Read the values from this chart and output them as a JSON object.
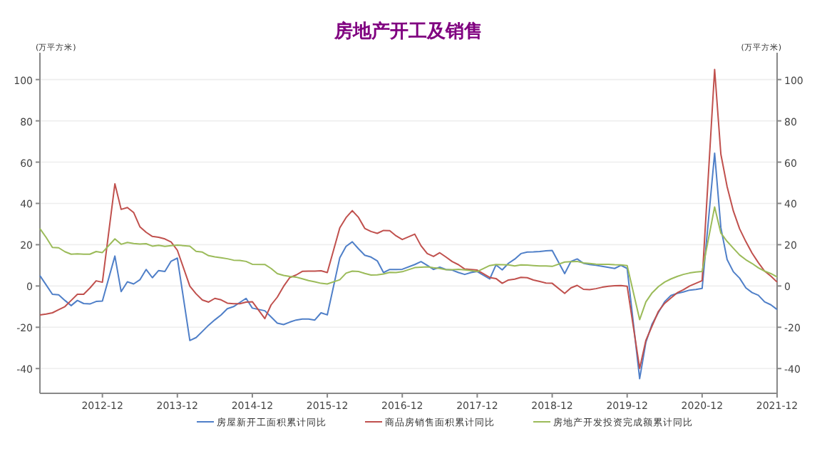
{
  "chart_data": {
    "type": "line",
    "title": "房地产开工及销售",
    "ylabel": "(万平方米)",
    "y2label": "(万平方米)",
    "x": [
      "2012-02",
      "2012-03",
      "2012-04",
      "2012-05",
      "2012-06",
      "2012-07",
      "2012-08",
      "2012-09",
      "2012-10",
      "2012-11",
      "2012-12",
      "2013-02",
      "2013-03",
      "2013-04",
      "2013-05",
      "2013-06",
      "2013-07",
      "2013-08",
      "2013-09",
      "2013-10",
      "2013-11",
      "2013-12",
      "2014-02",
      "2014-03",
      "2014-04",
      "2014-05",
      "2014-06",
      "2014-07",
      "2014-08",
      "2014-09",
      "2014-10",
      "2014-11",
      "2014-12",
      "2015-02",
      "2015-03",
      "2015-04",
      "2015-05",
      "2015-06",
      "2015-07",
      "2015-08",
      "2015-09",
      "2015-10",
      "2015-11",
      "2015-12",
      "2016-02",
      "2016-03",
      "2016-04",
      "2016-05",
      "2016-06",
      "2016-07",
      "2016-08",
      "2016-09",
      "2016-10",
      "2016-11",
      "2016-12",
      "2017-02",
      "2017-03",
      "2017-04",
      "2017-05",
      "2017-06",
      "2017-07",
      "2017-08",
      "2017-09",
      "2017-10",
      "2017-11",
      "2017-12",
      "2018-02",
      "2018-03",
      "2018-04",
      "2018-05",
      "2018-06",
      "2018-07",
      "2018-08",
      "2018-09",
      "2018-10",
      "2018-11",
      "2018-12",
      "2019-02",
      "2019-03",
      "2019-04",
      "2019-05",
      "2019-06",
      "2019-07",
      "2019-08",
      "2019-09",
      "2019-10",
      "2019-11",
      "2019-12",
      "2020-02",
      "2020-03",
      "2020-04",
      "2020-05",
      "2020-06",
      "2020-07",
      "2020-08",
      "2020-09",
      "2020-10",
      "2020-11",
      "2020-12",
      "2021-02",
      "2021-03",
      "2021-04",
      "2021-05",
      "2021-06",
      "2021-07",
      "2021-08",
      "2021-09",
      "2021-10",
      "2021-11",
      "2021-12"
    ],
    "series": [
      {
        "name": "房屋新开工面积累计同比",
        "color": "#4f7fc8",
        "values": [
          5,
          0.5,
          -4,
          -4.3,
          -7,
          -9.5,
          -7,
          -8.5,
          -8.7,
          -7.5,
          -7.3,
          14.5,
          -2.7,
          2,
          1,
          3,
          8,
          4,
          7.5,
          7,
          12,
          13.5,
          -26.4,
          -25,
          -22,
          -19,
          -16.4,
          -14,
          -11,
          -10,
          -8,
          -6,
          -10.7,
          -12,
          -15,
          -18,
          -18.7,
          -17.5,
          -16.5,
          -16,
          -16,
          -16.5,
          -13,
          -14,
          13.7,
          19.2,
          21.4,
          18,
          14.9,
          14,
          12.2,
          6.5,
          8,
          8,
          8.1,
          10.4,
          11.8,
          10,
          8,
          9.1,
          8,
          7.7,
          6.5,
          5.6,
          6.5,
          7,
          3.4,
          10.2,
          7.8,
          11,
          13,
          15.7,
          16.4,
          16.5,
          16.7,
          17,
          17.2,
          6,
          11.9,
          13.1,
          11,
          10.4,
          10,
          9.5,
          9,
          8.5,
          10,
          8.5,
          -44.9,
          -27.2,
          -18.4,
          -12.8,
          -7.6,
          -4.6,
          -3.6,
          -2.9,
          -2,
          -1.7,
          -1.2,
          64.3,
          28.2,
          12.8,
          6.9,
          3.8,
          -0.9,
          -3.2,
          -4.5,
          -7.7,
          -9.1,
          -11.4
        ]
      },
      {
        "name": "商品房销售面积累计同比",
        "color": "#c0504d",
        "values": [
          -14,
          -13.6,
          -13,
          -11.5,
          -10,
          -7,
          -4,
          -4,
          -1,
          2.5,
          1.8,
          49.5,
          37.1,
          38,
          35.6,
          28.7,
          26,
          24,
          23.6,
          22.8,
          21.3,
          17.3,
          -0.1,
          -3.8,
          -6.8,
          -7.8,
          -6,
          -6.7,
          -8.3,
          -8.6,
          -8.6,
          -7.8,
          -7.6,
          -15.8,
          -9.2,
          -5.4,
          -0.2,
          4.1,
          5.3,
          7.1,
          7.2,
          7.2,
          7.4,
          6.5,
          28.2,
          33.1,
          36.5,
          33.2,
          27.9,
          26.4,
          25.5,
          26.9,
          26.8,
          24.3,
          22.5,
          25.1,
          19.5,
          15.7,
          14.3,
          16.1,
          14,
          11.8,
          10.3,
          8.2,
          8,
          7.7,
          4.1,
          3.6,
          1.3,
          2.9,
          3.3,
          4.2,
          4,
          2.9,
          2.2,
          1.4,
          1.3,
          -3.6,
          -0.9,
          0.3,
          -1.6,
          -1.8,
          -1.3,
          -0.6,
          -0.1,
          0.1,
          0.2,
          -0.1,
          -39.9,
          -26.3,
          -19.3,
          -12.3,
          -8.4,
          -5.8,
          -3.3,
          -1.8,
          0,
          1.3,
          2.6,
          104.9,
          63.8,
          48.1,
          36.3,
          27.7,
          21.5,
          15.9,
          11.3,
          7.2,
          4.8,
          1.9
        ]
      },
      {
        "name": "房地产开发投资完成额累计同比",
        "color": "#9bbb59",
        "values": [
          27.8,
          23.5,
          18.7,
          18.5,
          16.6,
          15.4,
          15.6,
          15.4,
          15.4,
          16.7,
          16.2,
          22.8,
          20.2,
          21.1,
          20.6,
          20.3,
          20.5,
          19.3,
          19.7,
          19.2,
          19.5,
          19.8,
          19.3,
          16.8,
          16.4,
          14.7,
          14.1,
          13.7,
          13.2,
          12.5,
          12.4,
          11.9,
          10.5,
          10.4,
          8.5,
          6,
          5.1,
          4.6,
          4.3,
          3.5,
          2.6,
          2,
          1.3,
          1,
          3,
          6.2,
          7.2,
          7,
          6.1,
          5.3,
          5.4,
          5.8,
          6.6,
          6.5,
          6.9,
          8.9,
          9.1,
          9.3,
          8.8,
          8.5,
          7.9,
          7.9,
          8.1,
          7.8,
          7.5,
          7,
          9.9,
          10.4,
          10.3,
          10.2,
          9.7,
          10.2,
          10.1,
          9.9,
          9.7,
          9.7,
          9.5,
          11.6,
          11.8,
          11.9,
          11.2,
          10.9,
          10.6,
          10.5,
          10.5,
          10.3,
          10.2,
          9.9,
          -16.3,
          -7.7,
          -3.3,
          -0.3,
          1.9,
          3.4,
          4.6,
          5.6,
          6.3,
          6.8,
          7,
          38.3,
          25.6,
          21.6,
          18.3,
          15,
          12.7,
          10.9,
          8.8,
          7.2,
          6,
          4.4
        ]
      }
    ],
    "xlim": [
      "2012-02",
      "2021-12"
    ],
    "xticks": [
      "2012-12",
      "2013-12",
      "2014-12",
      "2015-12",
      "2016-12",
      "2017-12",
      "2018-12",
      "2019-12",
      "2020-12",
      "2021-12"
    ],
    "ylim": [
      -52,
      113
    ],
    "yticks": [
      -40,
      -20,
      0,
      20,
      40,
      60,
      80,
      100
    ],
    "y2lim": [
      -52,
      113
    ],
    "y2ticks": [
      -40,
      -20,
      0,
      20,
      40,
      60,
      80,
      100
    ],
    "grid": "y",
    "legend": "bottom",
    "marker": "none",
    "line_style": "solid"
  }
}
